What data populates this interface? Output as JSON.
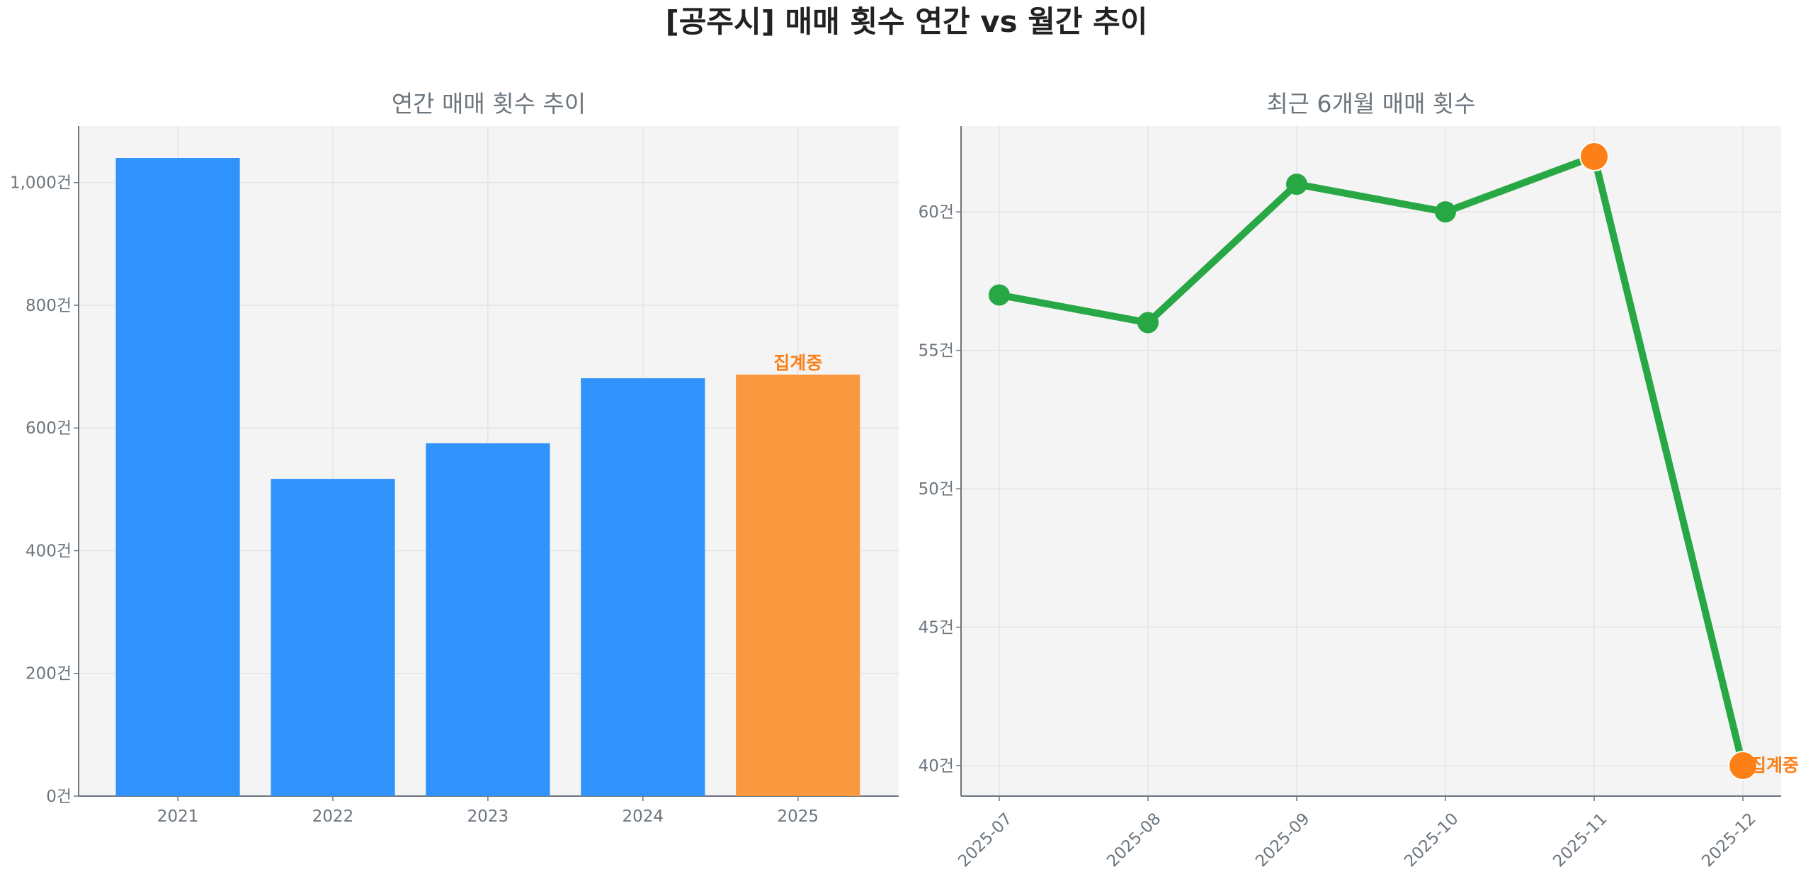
{
  "title": "[공주시] 매매 횟수 연간 vs 월간 추이",
  "colors": {
    "bar": "#3092fb",
    "bar_highlight": "#fa983f",
    "line": "#28a745",
    "marker_highlight": "#fd7f17",
    "text": "#6c757d",
    "plot_bg": "#f4f4f4",
    "annotation": "#fd7f17"
  },
  "chart_data": [
    {
      "type": "bar",
      "title": "연간 매매 횟수 추이",
      "categories": [
        "2021",
        "2022",
        "2023",
        "2024",
        "2025"
      ],
      "values": [
        1040,
        517,
        575,
        681,
        687
      ],
      "highlight_index": 4,
      "annotation": {
        "index": 4,
        "text": "집계중"
      },
      "ylim": [
        0,
        1092
      ],
      "yticks": [
        0,
        200,
        400,
        600,
        800,
        1000
      ],
      "ytick_labels": [
        "0건",
        "200건",
        "400건",
        "600건",
        "800건",
        "1,000건"
      ],
      "xlabel": "",
      "ylabel": "",
      "grid": true
    },
    {
      "type": "line",
      "title": "최근 6개월 매매 횟수",
      "categories": [
        "2025-07",
        "2025-08",
        "2025-09",
        "2025-10",
        "2025-11",
        "2025-12"
      ],
      "values": [
        57,
        56,
        61,
        60,
        62,
        40
      ],
      "highlight_indices": [
        4,
        5
      ],
      "annotation": {
        "index": 5,
        "text": "집계중"
      },
      "ylim": [
        38.9,
        63.1
      ],
      "yticks": [
        40,
        45,
        50,
        55,
        60
      ],
      "ytick_labels": [
        "40건",
        "45건",
        "50건",
        "55건",
        "60건"
      ],
      "xlabel": "",
      "ylabel": "",
      "grid": true
    }
  ]
}
